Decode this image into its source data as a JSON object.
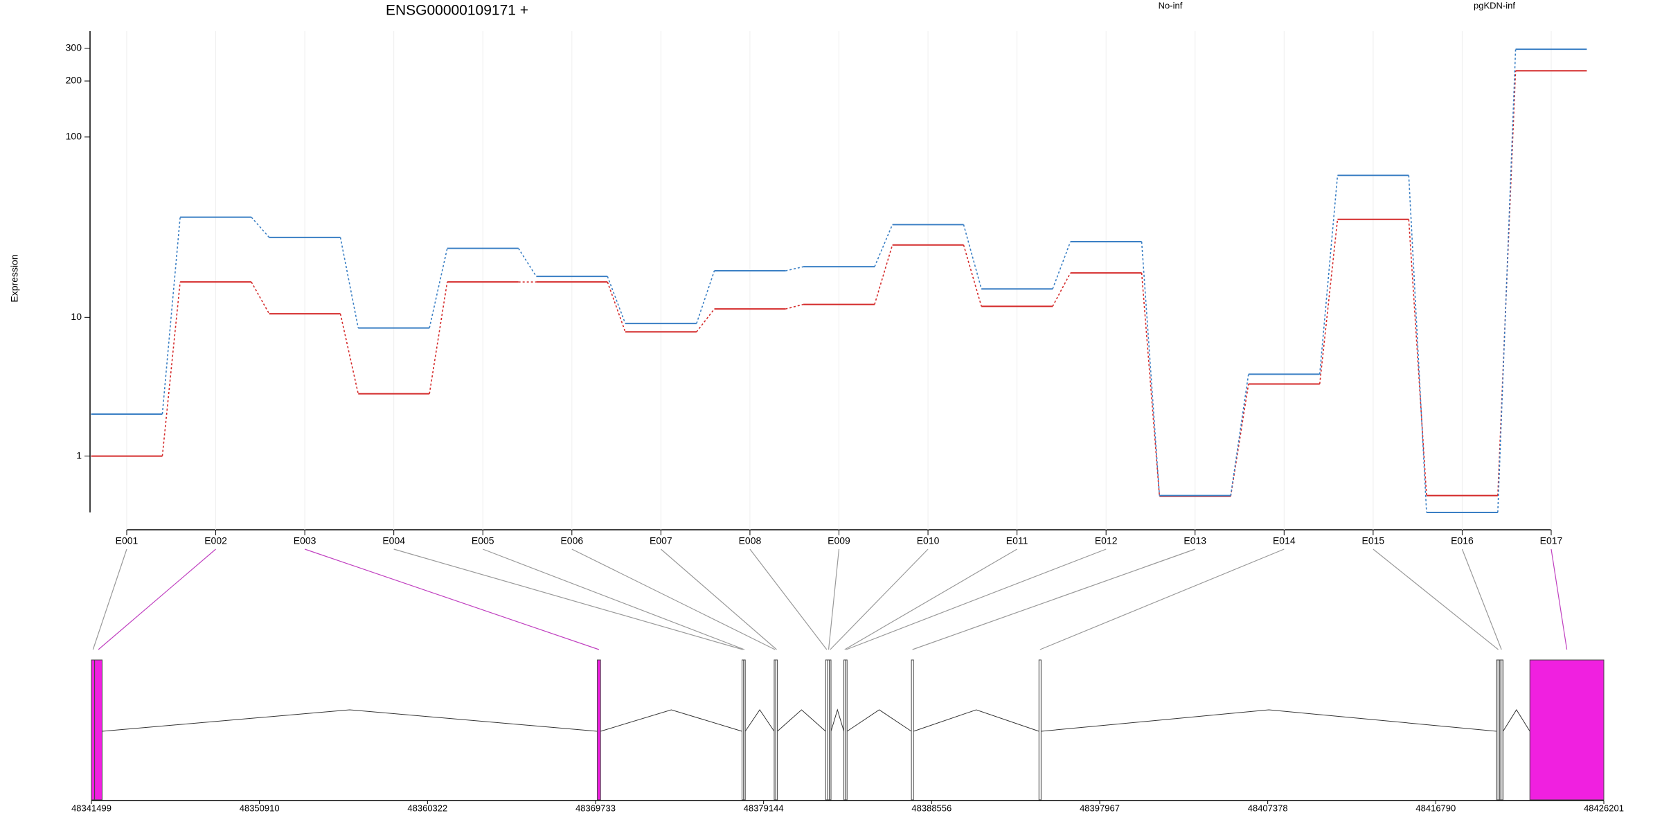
{
  "chart_data": {
    "type": "line",
    "title": "ENSG00000109171 +",
    "y_label": "Expression",
    "yscale": "log1p",
    "ylim": [
      0,
      370
    ],
    "yticks": [
      1,
      10,
      100,
      200,
      300
    ],
    "grid": true,
    "categories": [
      "E001",
      "E002",
      "E003",
      "E004",
      "E005",
      "E006",
      "E007",
      "E008",
      "E009",
      "E010",
      "E011",
      "E012",
      "E013",
      "E014",
      "E015",
      "E016",
      "E017"
    ],
    "series": [
      {
        "name": "No-inf",
        "color": "#d42a2a",
        "values": [
          1,
          16,
          10.5,
          3.3,
          16,
          16,
          8.2,
          11.2,
          11.9,
          25.8,
          11.6,
          18,
          0.22,
          3.85,
          35.7,
          0.23,
          227
        ]
      },
      {
        "name": "pgKDN-inf",
        "color": "#3a7fc4",
        "values": [
          2.35,
          36.7,
          28.4,
          8.66,
          24.7,
          17.2,
          9.2,
          18.5,
          19.5,
          33.4,
          14.6,
          26.9,
          0.23,
          4.47,
          62,
          0,
          296
        ]
      }
    ]
  },
  "gene_model": {
    "xlim": [
      48341499,
      48426201
    ],
    "xticks": [
      48341499,
      48350910,
      48360322,
      48369733,
      48379144,
      48388556,
      48397967,
      48407378,
      48416790,
      48426201
    ],
    "exon_starts": [
      48341499,
      48341679,
      48369833,
      48377937,
      48378027,
      48379738,
      48379828,
      48382620,
      48382740,
      48382830,
      48383640,
      48383730,
      48387422,
      48394566,
      48420198,
      48420378,
      48422059
    ],
    "exon_ends": [
      48341679,
      48342099,
      48370013,
      48378027,
      48378117,
      48379828,
      48379918,
      48382740,
      48382830,
      48382920,
      48383730,
      48383820,
      48387542,
      48394686,
      48420378,
      48420558,
      48426201
    ],
    "exon_fills": [
      "#f020e0",
      "#f020e0",
      "#f020e0",
      "#ffffff",
      "#ffffff",
      "#ffffff",
      "#ffffff",
      "#ffffff",
      "#ffffff",
      "#ffffff",
      "#ffffff",
      "#ffffff",
      "#ffffff",
      "#ffffff",
      "#c8c8c8",
      "#c8c8c8",
      "#f020e0"
    ],
    "link_colors": [
      "#999999",
      "#c040c0",
      "#c040c0",
      "#999999",
      "#999999",
      "#999999",
      "#999999",
      "#999999",
      "#999999",
      "#999999",
      "#999999",
      "#999999",
      "#999999",
      "#999999",
      "#999999",
      "#999999",
      "#c040c0"
    ]
  }
}
